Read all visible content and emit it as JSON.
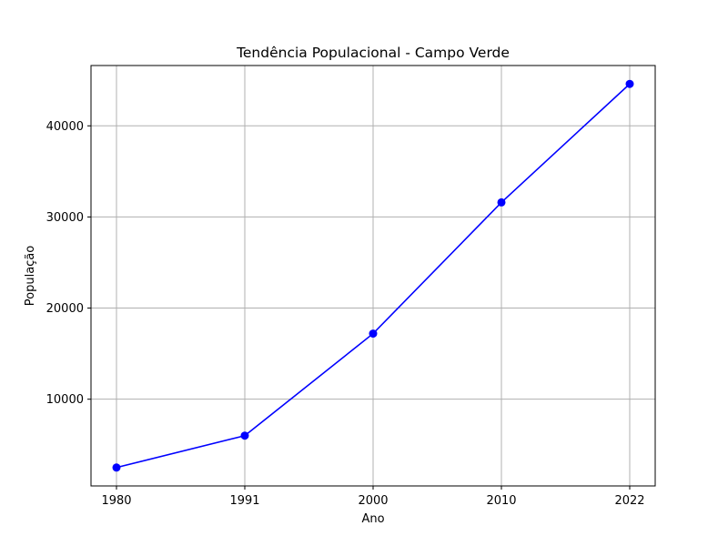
{
  "chart_data": {
    "type": "line",
    "title": "Tendência Populacional - Campo Verde",
    "xlabel": "Ano",
    "ylabel": "População",
    "categories": [
      "1980",
      "1991",
      "2000",
      "2010",
      "2022"
    ],
    "series": [
      {
        "values": [
          2500,
          6000,
          17200,
          31600,
          44600
        ],
        "color": "#0000ff",
        "marker": "circle"
      }
    ],
    "yticks": [
      10000,
      20000,
      30000,
      40000
    ],
    "ytick_labels": [
      "10000",
      "20000",
      "30000",
      "40000"
    ],
    "ylim": [
      480,
      46620
    ],
    "grid": true
  }
}
